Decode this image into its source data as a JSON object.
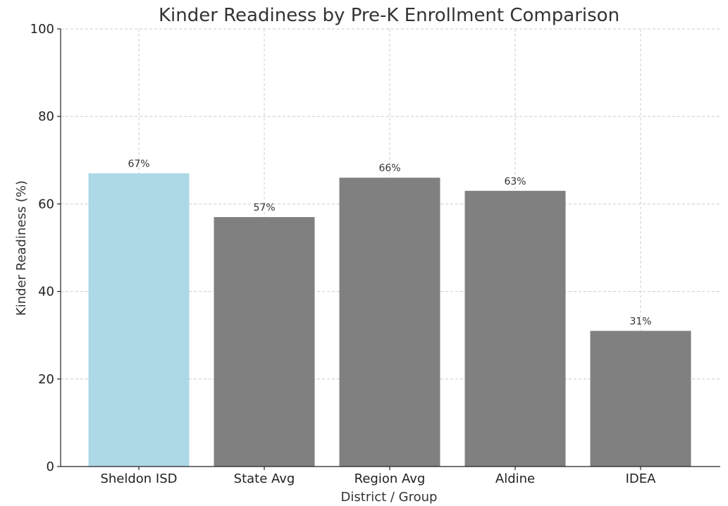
{
  "chart_data": {
    "type": "bar",
    "title": "Kinder Readiness by Pre-K Enrollment Comparison",
    "xlabel": "District / Group",
    "ylabel": "Kinder Readiness (%)",
    "categories": [
      "Sheldon ISD",
      "State Avg",
      "Region Avg",
      "Aldine",
      "IDEA"
    ],
    "values": [
      67,
      57,
      66,
      63,
      31
    ],
    "data_labels": [
      "67%",
      "57%",
      "66%",
      "63%",
      "31%"
    ],
    "colors": [
      "#add8e6",
      "#808080",
      "#808080",
      "#808080",
      "#808080"
    ],
    "ylim": [
      0,
      100
    ],
    "yticks": [
      0,
      20,
      40,
      60,
      80,
      100
    ],
    "grid": true
  }
}
